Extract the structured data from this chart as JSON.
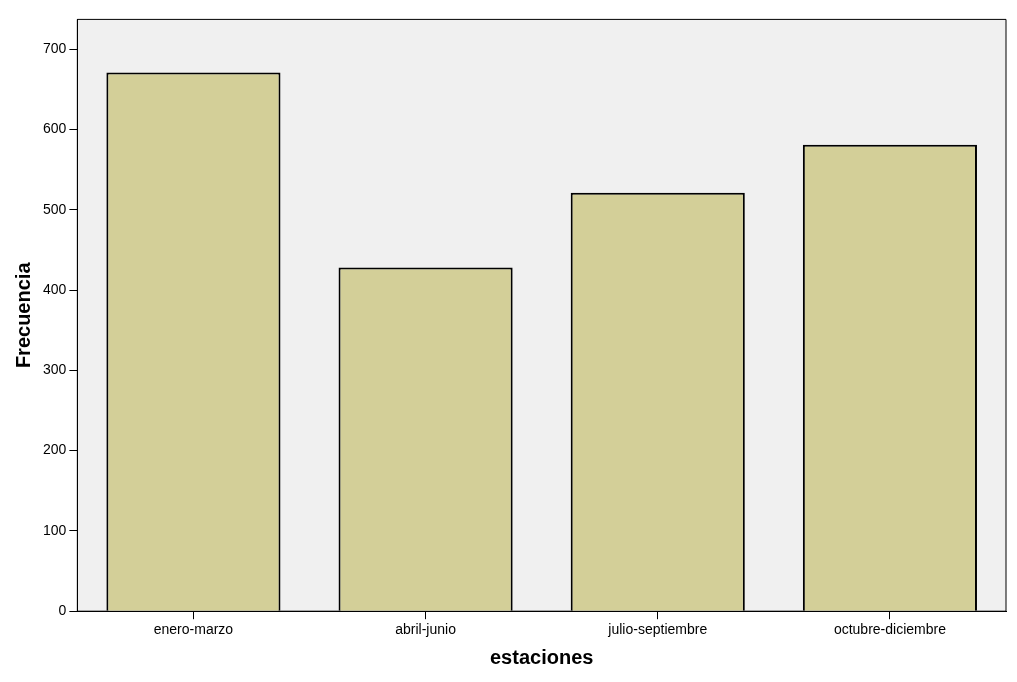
{
  "chart_data": {
    "type": "bar",
    "xlabel": "estaciones",
    "ylabel": "Frecuencia",
    "categories": [
      "enero-marzo",
      "abril-junio",
      "julio-septiembre",
      "octubre-diciembre"
    ],
    "values": [
      671,
      428,
      521,
      581
    ],
    "color": "#d3cf98",
    "ylim": [
      0,
      737
    ],
    "yticks": [
      0,
      100,
      200,
      300,
      400,
      500,
      600,
      700
    ],
    "grid": false,
    "legend": false
  }
}
